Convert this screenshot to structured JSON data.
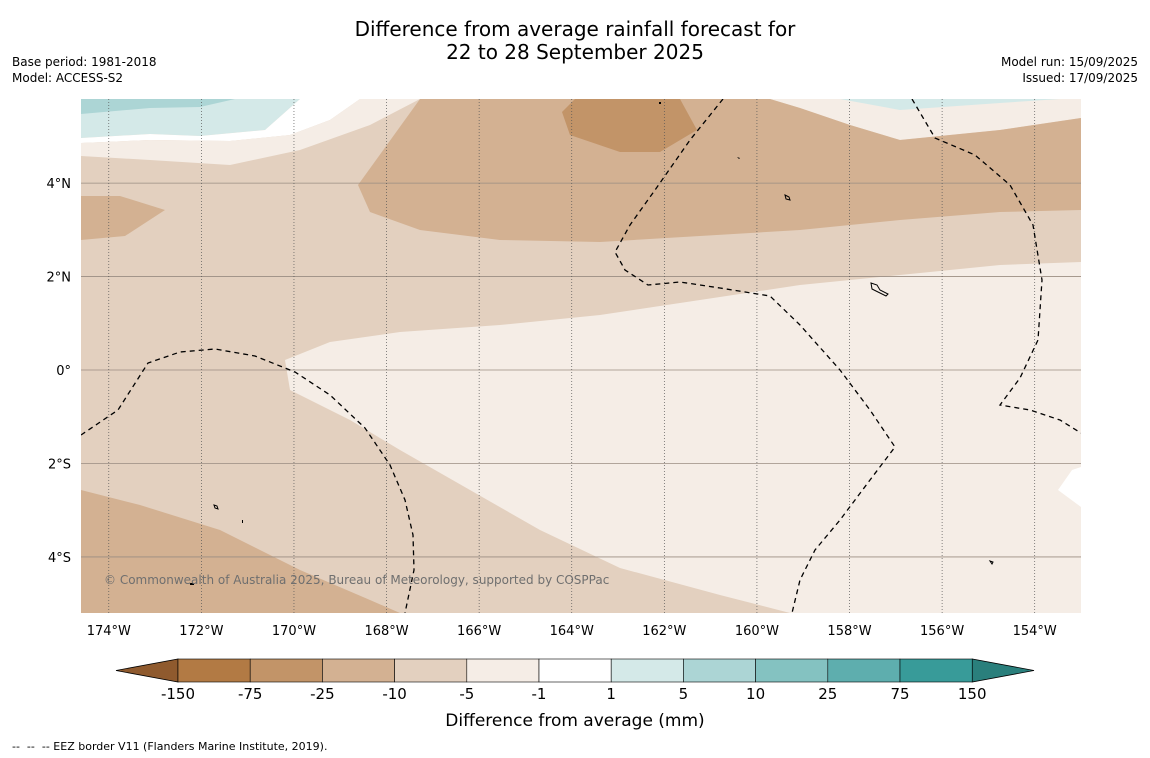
{
  "title": {
    "line1": "Difference from average rainfall forecast for",
    "line2": "22 to 28 September 2025"
  },
  "meta_left": {
    "base_period": "Base period: 1981-2018",
    "model": "Model: ACCESS-S2"
  },
  "meta_right": {
    "model_run": "Model run: 15/09/2025",
    "issued": "Issued: 17/09/2025"
  },
  "map": {
    "extent": {
      "lon_min": -174.6,
      "lon_max": -153.0,
      "lat_min": -5.2,
      "lat_max": 5.8
    },
    "lat_labels": [
      "4°N",
      "2°N",
      "0°",
      "2°S",
      "4°S"
    ],
    "lon_labels": [
      "174°W",
      "172°W",
      "170°W",
      "168°W",
      "166°W",
      "164°W",
      "162°W",
      "160°W",
      "158°W",
      "156°W",
      "154°W"
    ],
    "copyright": "© Commonwealth of Australia 2025, Bureau of Meteorology, supported by COSPPac"
  },
  "colorbar": {
    "ticks": [
      "-150",
      "-75",
      "-25",
      "-10",
      "-5",
      "-1",
      "1",
      "5",
      "10",
      "25",
      "75",
      "150"
    ],
    "colors": [
      "#b27a44",
      "#c29468",
      "#d3b192",
      "#e3d0bf",
      "#f5ede6",
      "#ffffff",
      "#d4e9e8",
      "#acd5d5",
      "#84c2c1",
      "#5eaeae",
      "#389b99"
    ],
    "under_color": "#8f5a2e",
    "over_color": "#2a7f7c",
    "label": "Difference from average (mm)"
  },
  "footnote": "--  --  -- EEZ border V11 (Flanders Marine Institute, 2019)."
}
